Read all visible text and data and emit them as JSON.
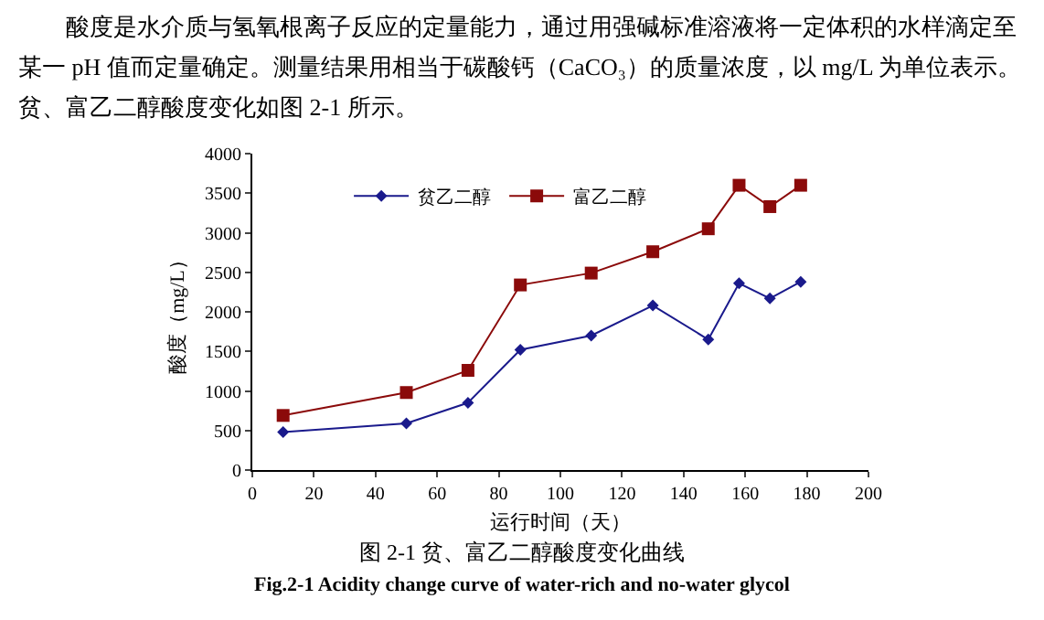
{
  "chart_data": {
    "type": "line",
    "xlabel": "运行时间（天）",
    "ylabel": "酸度（mg/L）",
    "x": [
      10,
      50,
      70,
      87,
      110,
      130,
      148,
      158,
      168,
      178
    ],
    "series": [
      {
        "name": "贫乙二醇",
        "color": "#1a1a8c",
        "marker": "diamond",
        "values": [
          480,
          590,
          850,
          1520,
          1700,
          2080,
          1650,
          2360,
          2170,
          2380
        ]
      },
      {
        "name": "富乙二醇",
        "color": "#8b0a0a",
        "marker": "square",
        "values": [
          690,
          980,
          1260,
          2340,
          2490,
          2760,
          3050,
          3600,
          3330,
          3600
        ]
      }
    ],
    "xlim": [
      0,
      200
    ],
    "xticks": [
      0,
      20,
      40,
      60,
      80,
      100,
      120,
      140,
      160,
      180,
      200
    ],
    "ylim": [
      0,
      4000
    ],
    "yticks": [
      0,
      500,
      1000,
      1500,
      2000,
      2500,
      3000,
      3500,
      4000
    ],
    "grid": false,
    "legend": "top",
    "line_style": "solid",
    "annotations": [
      "酸度是水介质与氢氧根离子反应的定量能力，通过用强碱标准溶液将一定体积的水样滴定至某一 pH 值而定量确定。测量结果用相当于碳酸钙（CaCO₃）的质量浓度，以 mg/L 为单位表示。贫、富乙二醇酸度变化如图 2-1 所示。",
      "图 2-1  贫、富乙二醇酸度变化曲线",
      "Fig.2-1 Acidity change curve of water-rich and no-water glycol"
    ]
  }
}
